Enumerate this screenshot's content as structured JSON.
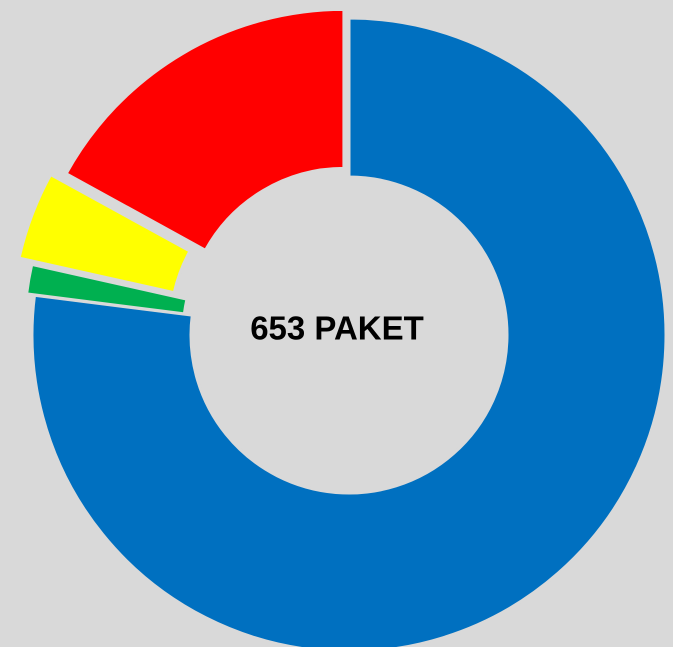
{
  "chart_data": {
    "type": "donut",
    "center_label": "653 PAKET",
    "categories": [
      null,
      null,
      null,
      null
    ],
    "values": [
      77,
      1.5,
      4.5,
      17
    ],
    "colors": [
      "#0070c0",
      "#00b050",
      "#ffff00",
      "#ff0000"
    ]
  }
}
